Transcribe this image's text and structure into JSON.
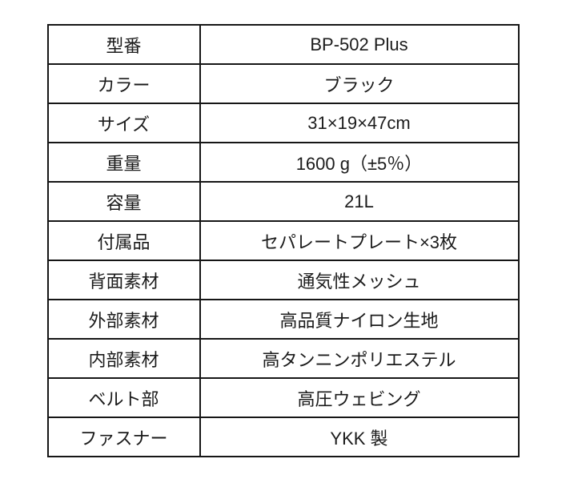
{
  "table": {
    "rows": [
      {
        "label": "型番",
        "value": "BP-502 Plus"
      },
      {
        "label": "カラー",
        "value": "ブラック"
      },
      {
        "label": "サイズ",
        "value": "31×19×47cm"
      },
      {
        "label": "重量",
        "value": "1600 g（±5％）"
      },
      {
        "label": "容量",
        "value": "21L"
      },
      {
        "label": "付属品",
        "value": "セパレートプレート×3枚"
      },
      {
        "label": "背面素材",
        "value": "通気性メッシュ"
      },
      {
        "label": "外部素材",
        "value": "高品質ナイロン生地"
      },
      {
        "label": "内部素材",
        "value": "高タンニンポリエステル"
      },
      {
        "label": "ベルト部",
        "value": "高圧ウェビング"
      },
      {
        "label": "ファスナー",
        "value": "YKK 製"
      }
    ]
  }
}
